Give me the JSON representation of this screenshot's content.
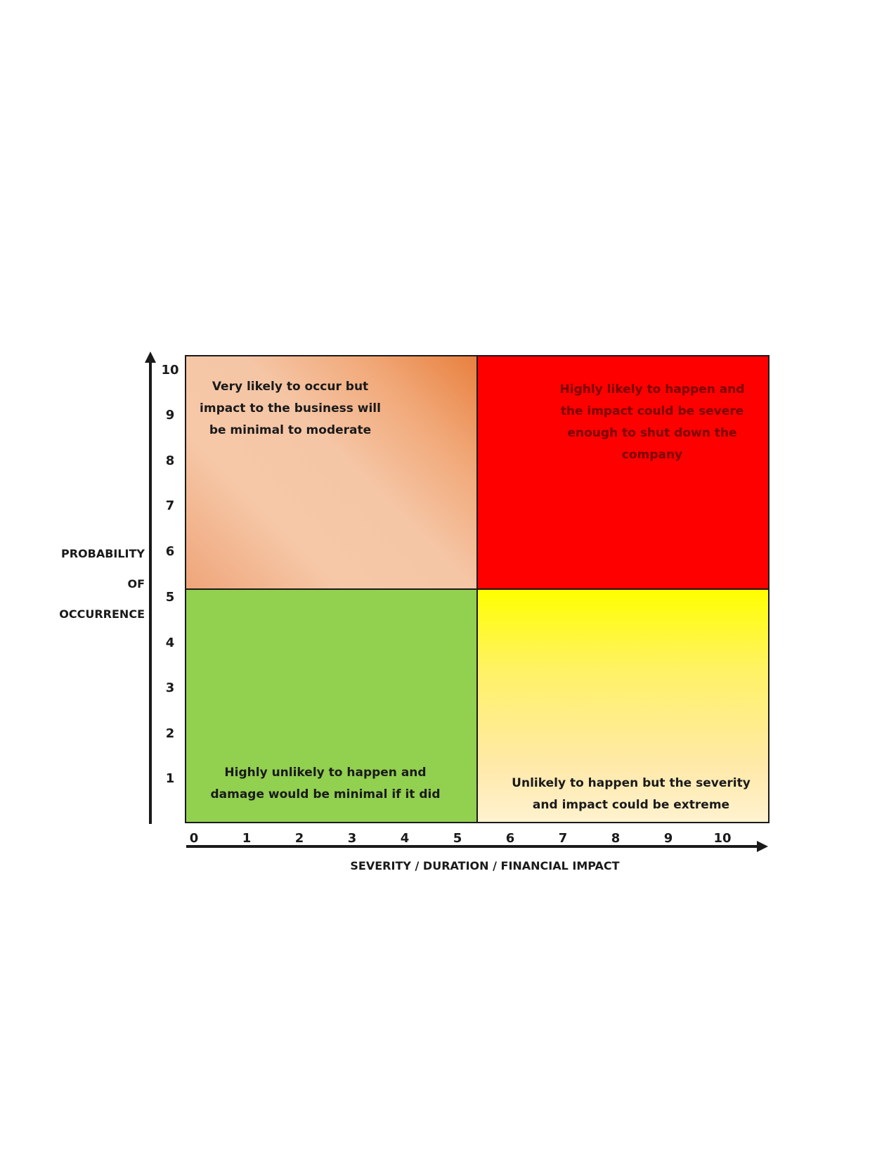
{
  "diagram": {
    "y_axis": {
      "label_lines": [
        "PROBABILITY",
        "OF",
        "OCCURRENCE"
      ],
      "ticks": [
        "10",
        "9",
        "8",
        "7",
        "6",
        "5",
        "4",
        "3",
        "2",
        "1"
      ]
    },
    "x_axis": {
      "label": "SEVERITY / DURATION / FINANCIAL IMPACT",
      "ticks": [
        "0",
        "1",
        "2",
        "3",
        "4",
        "5",
        "6",
        "7",
        "8",
        "9",
        "10"
      ]
    },
    "quadrants": {
      "top_left": {
        "text": "Very likely to occur but impact to the business will be minimal to moderate",
        "color": "#f5c6a6"
      },
      "top_right": {
        "text": "Highly likely to happen and the impact could be severe enough to shut down the company",
        "color": "#ff0000"
      },
      "bottom_left": {
        "text": "Highly unlikely to happen and damage would be minimal if it did",
        "color": "#92d050"
      },
      "bottom_right": {
        "text": "Unlikely to happen but the severity and impact could be extreme",
        "color": "#ffff00"
      }
    }
  }
}
